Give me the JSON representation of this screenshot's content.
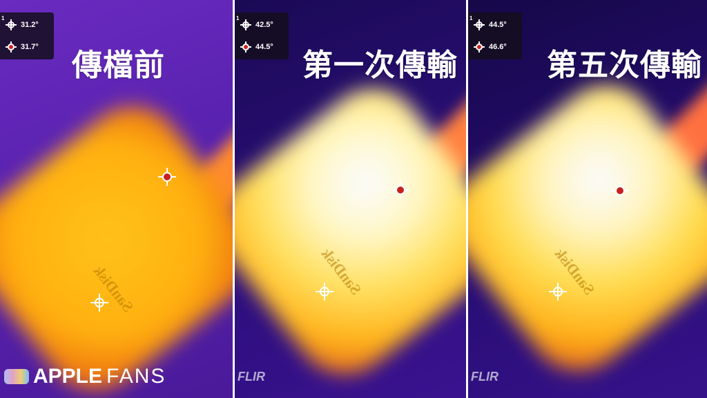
{
  "panels": [
    {
      "title": "傳檔前",
      "spot1": "31.2°",
      "spot2": "31.7°",
      "spot_index": "1",
      "label": "SanDisk"
    },
    {
      "title": "第一次傳輸",
      "spot1": "42.5°",
      "spot2": "44.5°",
      "spot_index": "1",
      "label": "SanDisk",
      "brand": "FLIR"
    },
    {
      "title": "第五次傳輸",
      "spot1": "44.5°",
      "spot2": "46.6°",
      "spot_index": "1",
      "label": "SanDisk",
      "brand": "FLIR"
    }
  ],
  "watermark": {
    "bold": "APPLE",
    "light": "FANS"
  },
  "icons": [
    "crosshair-spot-icon",
    "crosshair-hot-spot-icon",
    "flir-logo-icon",
    "applefans-logo-icon"
  ]
}
